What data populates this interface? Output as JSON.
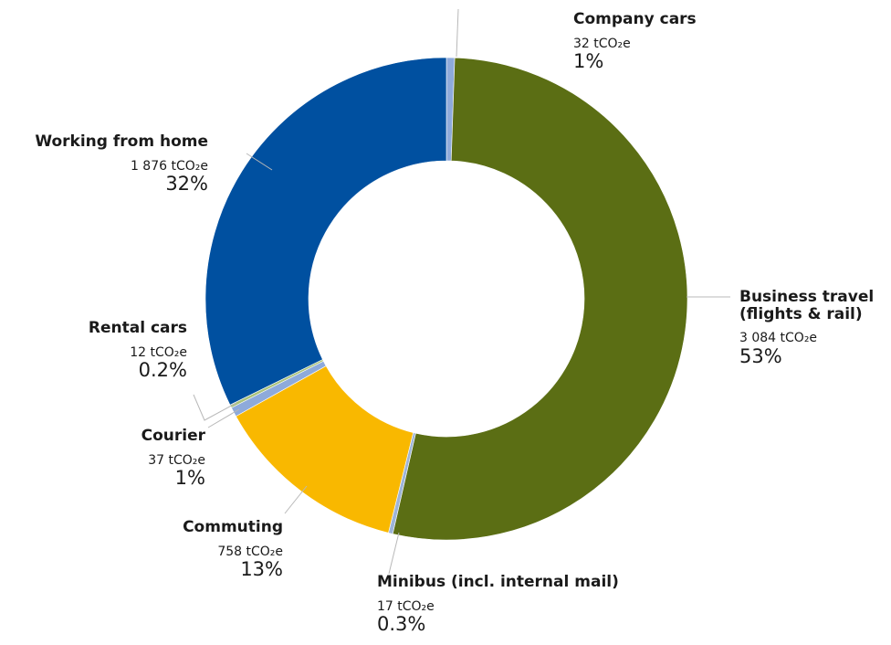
{
  "chart_data": {
    "type": "donut",
    "categories": [
      "Company cars",
      "Business travel (flights & rail)",
      "Minibus (incl. internal mail)",
      "Commuting",
      "Courier",
      "Rental cars",
      "Working from home"
    ],
    "values": [
      32,
      3084,
      17,
      758,
      37,
      12,
      1876
    ],
    "value_labels": [
      "32 tCO₂e",
      "3 084 tCO₂e",
      "17 tCO₂e",
      "758 tCO₂e",
      "37 tCO₂e",
      "12 tCO₂e",
      "1 876 tCO₂e"
    ],
    "percent_labels": [
      "1%",
      "53%",
      "0.3%",
      "13%",
      "1%",
      "0.2%",
      "32%"
    ],
    "colors": [
      "#8eaadb",
      "#5b6e14",
      "#9db4d8",
      "#f9b800",
      "#8eaadb",
      "#a9c27a",
      "#0050a0"
    ]
  }
}
